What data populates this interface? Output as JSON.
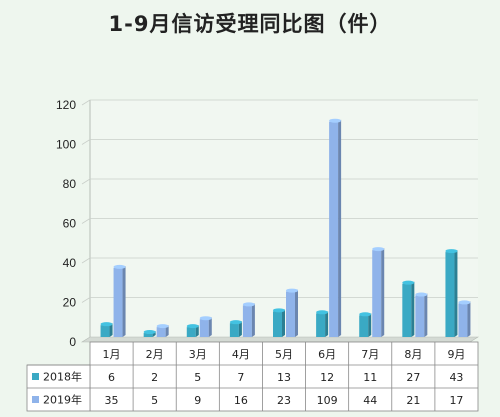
{
  "chart_data": {
    "type": "bar",
    "title": "1-9月信访受理同比图（件）",
    "categories": [
      "1月",
      "2月",
      "3月",
      "4月",
      "5月",
      "6月",
      "7月",
      "8月",
      "9月"
    ],
    "series": [
      {
        "name": "2018年",
        "values": [
          6,
          2,
          5,
          7,
          13,
          12,
          11,
          27,
          43
        ],
        "color": "#3aa9c4"
      },
      {
        "name": "2019年",
        "values": [
          35,
          5,
          9,
          16,
          23,
          109,
          44,
          21,
          17
        ],
        "color": "#8fb3ea"
      }
    ],
    "ylim": [
      0,
      120
    ],
    "yticks": [
      0,
      20,
      40,
      60,
      80,
      100,
      120
    ],
    "grid": true,
    "legend": "data-table-below",
    "colors": {
      "background": "#eef6ee",
      "grid": "#c9cfc9",
      "axis": "#888888"
    }
  }
}
